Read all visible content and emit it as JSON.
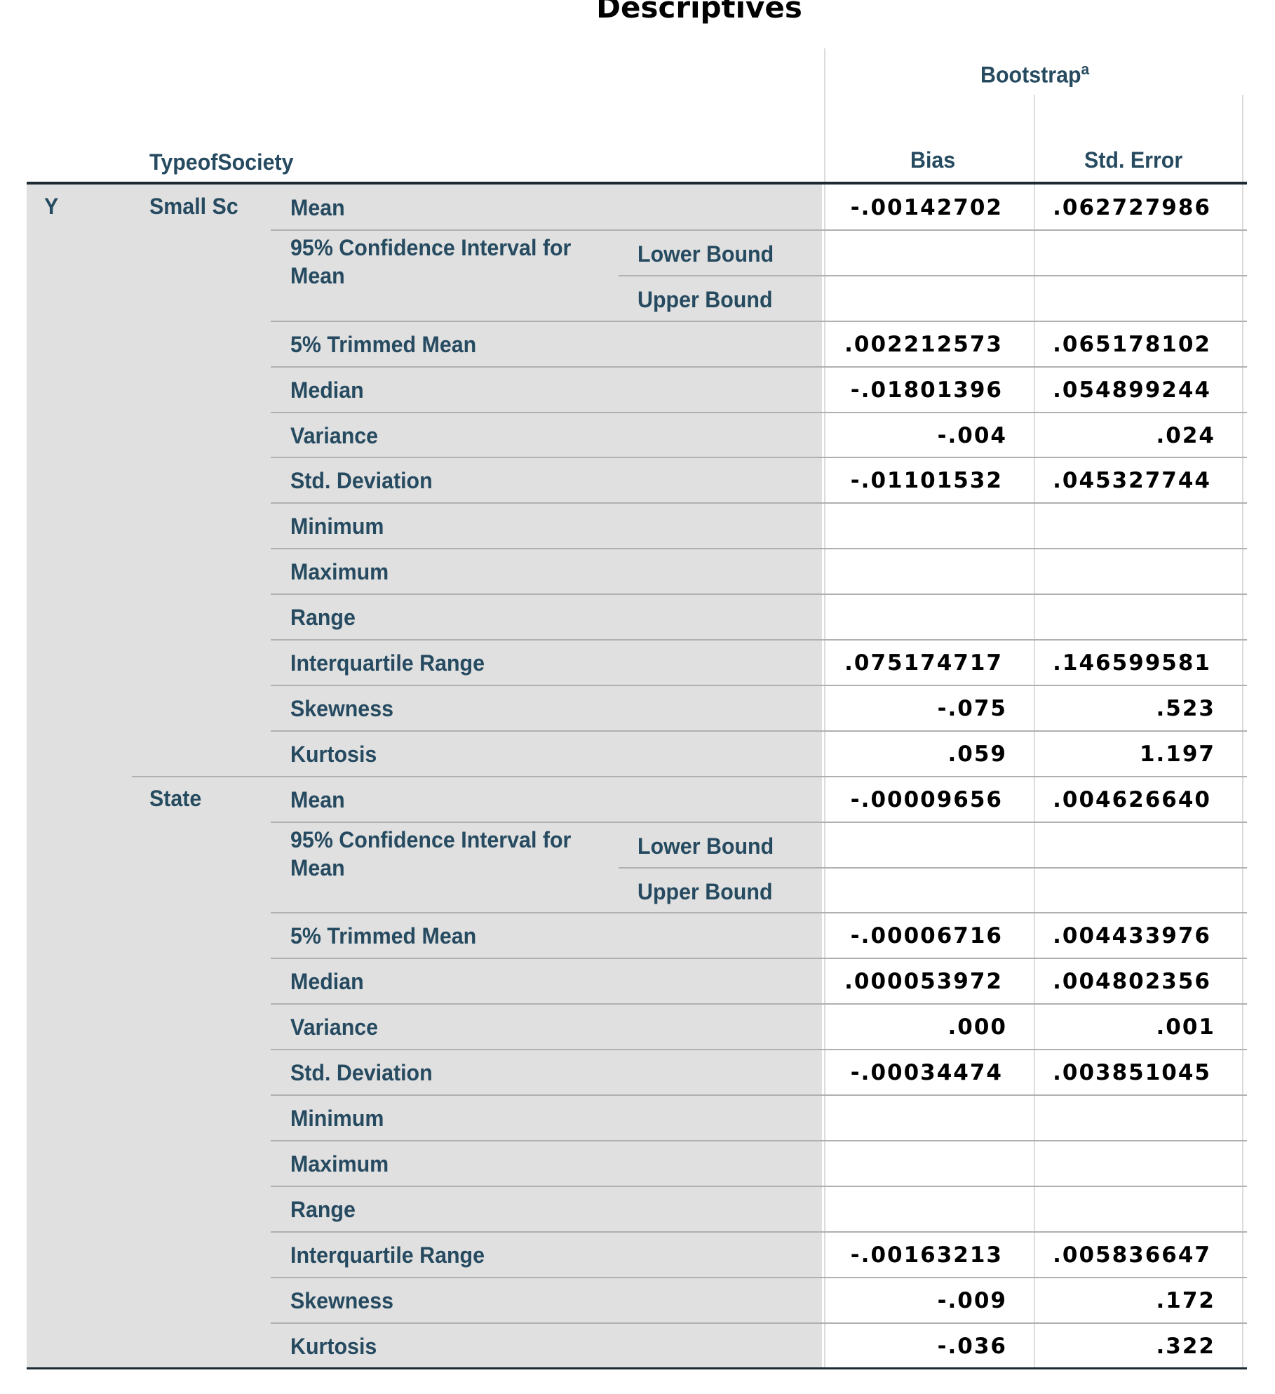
{
  "title": "Descriptives",
  "header": {
    "group_label": "TypeofSociety",
    "bootstrap": "Bootstrap",
    "bootstrap_footnote": "a",
    "columns": [
      "Bias",
      "Std. Error"
    ]
  },
  "variable": "Y",
  "groups": [
    {
      "name": "Small Sc",
      "rows": [
        {
          "stat": "Mean",
          "bias": "-.00142702",
          "se": ".062727986"
        },
        {
          "stat": "95% Confidence Interval for Mean",
          "sub": "Lower Bound",
          "bias": "",
          "se": ""
        },
        {
          "stat": "",
          "sub": "Upper Bound",
          "bias": "",
          "se": ""
        },
        {
          "stat": "5% Trimmed Mean",
          "bias": ".002212573",
          "se": ".065178102"
        },
        {
          "stat": "Median",
          "bias": "-.01801396",
          "se": ".054899244"
        },
        {
          "stat": "Variance",
          "bias": "-.004",
          "se": ".024"
        },
        {
          "stat": "Std. Deviation",
          "bias": "-.01101532",
          "se": ".045327744"
        },
        {
          "stat": "Minimum",
          "bias": "",
          "se": ""
        },
        {
          "stat": "Maximum",
          "bias": "",
          "se": ""
        },
        {
          "stat": "Range",
          "bias": "",
          "se": ""
        },
        {
          "stat": "Interquartile Range",
          "bias": ".075174717",
          "se": ".146599581"
        },
        {
          "stat": "Skewness",
          "bias": "-.075",
          "se": ".523"
        },
        {
          "stat": "Kurtosis",
          "bias": ".059",
          "se": "1.197"
        }
      ]
    },
    {
      "name": "State",
      "rows": [
        {
          "stat": "Mean",
          "bias": "-.00009656",
          "se": ".004626640"
        },
        {
          "stat": "95% Confidence Interval for Mean",
          "sub": "Lower Bound",
          "bias": "",
          "se": ""
        },
        {
          "stat": "",
          "sub": "Upper Bound",
          "bias": "",
          "se": ""
        },
        {
          "stat": "5% Trimmed Mean",
          "bias": "-.00006716",
          "se": ".004433976"
        },
        {
          "stat": "Median",
          "bias": ".000053972",
          "se": ".004802356"
        },
        {
          "stat": "Variance",
          "bias": ".000",
          "se": ".001"
        },
        {
          "stat": "Std. Deviation",
          "bias": "-.00034474",
          "se": ".003851045"
        },
        {
          "stat": "Minimum",
          "bias": "",
          "se": ""
        },
        {
          "stat": "Maximum",
          "bias": "",
          "se": ""
        },
        {
          "stat": "Range",
          "bias": "",
          "se": ""
        },
        {
          "stat": "Interquartile Range",
          "bias": "-.00163213",
          "se": ".005836647"
        },
        {
          "stat": "Skewness",
          "bias": "-.009",
          "se": ".172"
        },
        {
          "stat": "Kurtosis",
          "bias": "-.036",
          "se": ".322"
        }
      ]
    }
  ]
}
